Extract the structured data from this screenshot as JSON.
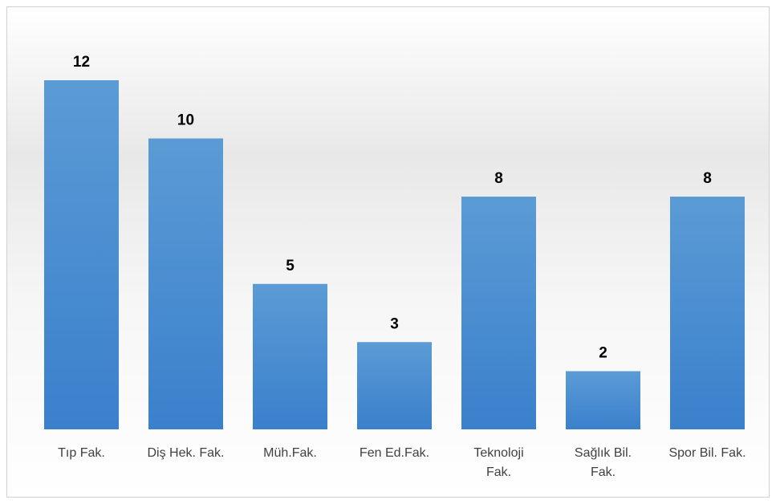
{
  "chart_data": {
    "type": "bar",
    "categories": [
      "Tıp Fak.",
      "Diş Hek. Fak.",
      "Müh.Fak.",
      "Fen Ed.Fak.",
      "Teknoloji Fak.",
      "Sağlık Bil. Fak.",
      "Spor Bil. Fak."
    ],
    "values": [
      12,
      10,
      5,
      3,
      8,
      2,
      8
    ],
    "color": "#5b9bd5",
    "ylim": [
      0,
      12
    ]
  }
}
